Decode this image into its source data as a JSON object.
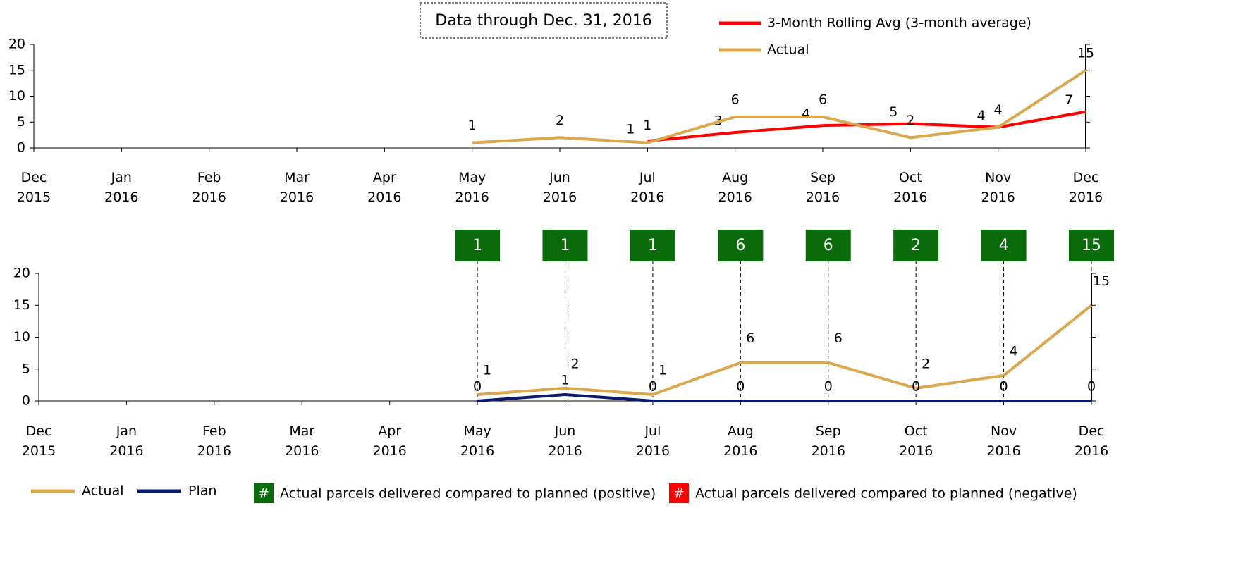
{
  "chart_data": [
    {
      "type": "line",
      "title": "Data through Dec. 31, 2016",
      "categories": [
        "Dec 2015",
        "Jan 2016",
        "Feb 2016",
        "Mar 2016",
        "Apr 2016",
        "May 2016",
        "Jun 2016",
        "Jul 2016",
        "Aug 2016",
        "Sep 2016",
        "Oct 2016",
        "Nov 2016",
        "Dec 2016"
      ],
      "ylim": [
        0,
        20
      ],
      "yticks": [
        0,
        5,
        10,
        15,
        20
      ],
      "legend": "top-right",
      "series": [
        {
          "name": "3-Month Rolling Avg (3-month average)",
          "color": "#ff0000",
          "values": [
            null,
            null,
            null,
            null,
            null,
            null,
            null,
            1.33,
            3,
            4.33,
            4.67,
            4,
            7
          ],
          "value_labels": [
            null,
            null,
            null,
            null,
            null,
            null,
            null,
            "1",
            "3",
            "4",
            "5",
            "4",
            "7"
          ]
        },
        {
          "name": "Actual",
          "color": "#d9a84e",
          "values": [
            null,
            null,
            null,
            null,
            null,
            1,
            2,
            1,
            6,
            6,
            2,
            4,
            15
          ]
        }
      ]
    },
    {
      "type": "line",
      "categories": [
        "Dec 2015",
        "Jan 2016",
        "Feb 2016",
        "Mar 2016",
        "Apr 2016",
        "May 2016",
        "Jun 2016",
        "Jul 2016",
        "Aug 2016",
        "Sep 2016",
        "Oct 2016",
        "Nov 2016",
        "Dec 2016"
      ],
      "ylim": [
        0,
        20
      ],
      "yticks": [
        0,
        5,
        10,
        15,
        20
      ],
      "legend": "bottom-left",
      "series": [
        {
          "name": "Actual",
          "color": "#d9a84e",
          "values": [
            null,
            null,
            null,
            null,
            null,
            1,
            2,
            1,
            6,
            6,
            2,
            4,
            15
          ]
        },
        {
          "name": "Plan",
          "color": "#0a1a6e",
          "values": [
            null,
            null,
            null,
            null,
            null,
            0,
            1,
            0,
            0,
            0,
            0,
            0,
            0
          ]
        }
      ],
      "differences": {
        "color": "#0a6b0a",
        "values": [
          null,
          null,
          null,
          null,
          null,
          1,
          1,
          1,
          6,
          6,
          2,
          4,
          15
        ]
      },
      "difference_legend": [
        {
          "symbol": "#",
          "color": "#0a6b0a",
          "label": "Actual parcels delivered compared to planned (positive)"
        },
        {
          "symbol": "#",
          "color": "#ff0000",
          "label": "Actual parcels delivered compared to planned (negative)"
        }
      ]
    }
  ]
}
